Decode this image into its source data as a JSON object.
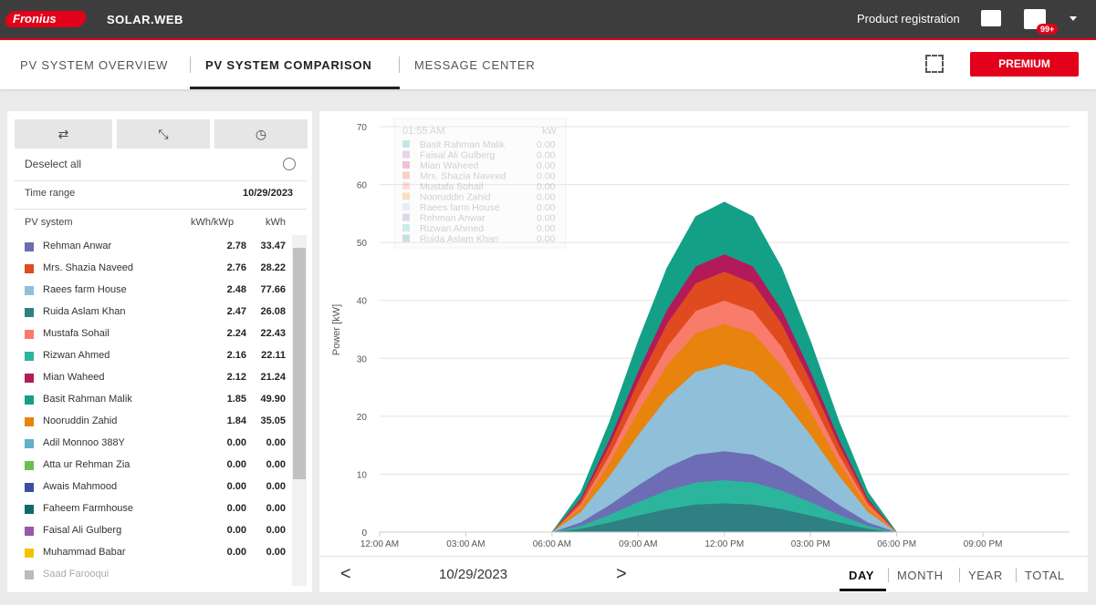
{
  "header": {
    "logo": "Fronius",
    "app": "SOLAR.WEB",
    "registration": "Product registration",
    "badge": "99+"
  },
  "nav": {
    "tabs": [
      "PV SYSTEM OVERVIEW",
      "PV SYSTEM COMPARISON",
      "MESSAGE CENTER"
    ],
    "premium": "PREMIUM"
  },
  "sidebar": {
    "deselect": "Deselect all",
    "time_range_label": "Time range",
    "time_range_value": "10/29/2023",
    "columns": [
      "PV system",
      "kWh/kWp",
      "kWh"
    ],
    "rows": [
      {
        "name": "Rehman Anwar",
        "color": "#6d6db5",
        "kwh_kwp": "2.78",
        "kwh": "33.47"
      },
      {
        "name": "Mrs. Shazia Naveed",
        "color": "#e04a1f",
        "kwh_kwp": "2.76",
        "kwh": "28.22"
      },
      {
        "name": "Raees farm House",
        "color": "#8fbfd9",
        "kwh_kwp": "2.48",
        "kwh": "77.66"
      },
      {
        "name": "Ruida Aslam Khan",
        "color": "#2e8083",
        "kwh_kwp": "2.47",
        "kwh": "26.08"
      },
      {
        "name": "Mustafa Sohail",
        "color": "#f87b6b",
        "kwh_kwp": "2.24",
        "kwh": "22.43"
      },
      {
        "name": "Rizwan Ahmed",
        "color": "#2bb59d",
        "kwh_kwp": "2.16",
        "kwh": "22.11"
      },
      {
        "name": "Mian Waheed",
        "color": "#b21a5a",
        "kwh_kwp": "2.12",
        "kwh": "21.24"
      },
      {
        "name": "Basit Rahman Malik",
        "color": "#13a086",
        "kwh_kwp": "1.85",
        "kwh": "49.90"
      },
      {
        "name": "Nooruddin Zahid",
        "color": "#e8830e",
        "kwh_kwp": "1.84",
        "kwh": "35.05"
      },
      {
        "name": "Adil Monnoo 388Y",
        "color": "#62afc9",
        "kwh_kwp": "0.00",
        "kwh": "0.00"
      },
      {
        "name": "Atta ur Rehman Zia",
        "color": "#6bbf4f",
        "kwh_kwp": "0.00",
        "kwh": "0.00"
      },
      {
        "name": "Awais Mahmood",
        "color": "#3a4fa0",
        "kwh_kwp": "0.00",
        "kwh": "0.00"
      },
      {
        "name": "Faheem Farmhouse",
        "color": "#0d6b6b",
        "kwh_kwp": "0.00",
        "kwh": "0.00"
      },
      {
        "name": "Faisal Ali Gulberg",
        "color": "#9b57b0",
        "kwh_kwp": "0.00",
        "kwh": "0.00"
      },
      {
        "name": "Muhammad Babar",
        "color": "#f5c400",
        "kwh_kwp": "0.00",
        "kwh": "0.00"
      },
      {
        "name": "Saad Farooqui",
        "color": "#bbbbbb"
      }
    ]
  },
  "chart_data": {
    "type": "stacked_area",
    "y_label": "Power [kW]",
    "x": [
      0,
      6,
      7,
      8,
      9,
      10,
      11,
      12,
      13,
      14,
      15,
      16,
      17,
      18,
      24
    ],
    "xlim": [
      0,
      24
    ],
    "xticks": [
      {
        "value": 0,
        "label": "12:00 AM"
      },
      {
        "value": 3,
        "label": "03:00 AM"
      },
      {
        "value": 6,
        "label": "06:00 AM"
      },
      {
        "value": 9,
        "label": "09:00 AM"
      },
      {
        "value": 12,
        "label": "12:00 PM"
      },
      {
        "value": 15,
        "label": "03:00 PM"
      },
      {
        "value": 18,
        "label": "06:00 PM"
      },
      {
        "value": 21,
        "label": "09:00 PM"
      }
    ],
    "ylim": [
      0,
      70
    ],
    "yticks": [
      0,
      10,
      20,
      30,
      40,
      50,
      60,
      70
    ],
    "grid": true,
    "series": [
      {
        "name": "Ruida Aslam Khan",
        "color": "#2e8083",
        "values": [
          0,
          0,
          0.6,
          1.7,
          2.9,
          4,
          4.8,
          5,
          4.8,
          4,
          2.9,
          1.7,
          0.6,
          0,
          0
        ]
      },
      {
        "name": "Rizwan Ahmed",
        "color": "#2bb59d",
        "values": [
          0,
          0,
          0.5,
          1.3,
          2.3,
          3.2,
          3.8,
          4,
          3.8,
          3.2,
          2.3,
          1.3,
          0.5,
          0,
          0
        ]
      },
      {
        "name": "Rehman Anwar",
        "color": "#6d6db5",
        "values": [
          0,
          0,
          0.6,
          1.7,
          2.9,
          4,
          4.8,
          5,
          4.8,
          4,
          2.9,
          1.7,
          0.6,
          0,
          0
        ]
      },
      {
        "name": "Raees farm House",
        "color": "#8fbfd9",
        "values": [
          0,
          0,
          1.8,
          5,
          8.7,
          12,
          14.3,
          15,
          14.3,
          12,
          8.7,
          5,
          1.8,
          0,
          0
        ]
      },
      {
        "name": "Nooruddin Zahid",
        "color": "#e8830e",
        "values": [
          0,
          0,
          0.8,
          2.3,
          4.1,
          5.6,
          6.7,
          7,
          6.7,
          5.6,
          4.1,
          2.3,
          0.8,
          0,
          0
        ]
      },
      {
        "name": "Mustafa Sohail",
        "color": "#f87b6b",
        "values": [
          0,
          0,
          0.5,
          1.3,
          2.3,
          3.2,
          3.8,
          4,
          3.8,
          3.2,
          2.3,
          1.3,
          0.5,
          0,
          0
        ]
      },
      {
        "name": "Mrs. Shazia Naveed",
        "color": "#e04a1f",
        "values": [
          0,
          0,
          0.6,
          1.7,
          2.9,
          4,
          4.8,
          5,
          4.8,
          4,
          2.9,
          1.7,
          0.6,
          0,
          0
        ]
      },
      {
        "name": "Mian Waheed",
        "color": "#b21a5a",
        "values": [
          0,
          0,
          0.4,
          1,
          1.7,
          2.4,
          2.9,
          3,
          2.9,
          2.4,
          1.7,
          1,
          0.4,
          0,
          0
        ]
      },
      {
        "name": "Basit Rahman Malik",
        "color": "#13a086",
        "values": [
          0,
          0,
          1.1,
          3,
          5.2,
          7.2,
          8.6,
          9,
          8.6,
          7.2,
          5.2,
          3,
          1.1,
          0,
          0
        ]
      }
    ],
    "tooltip": {
      "time": "01:55 AM",
      "unit": "kW",
      "rows": [
        {
          "name": "Basit Rahman Malik",
          "color": "#13a086",
          "value": "0.00"
        },
        {
          "name": "Faisal Ali Gulberg",
          "color": "#9b57b0",
          "value": "0.00"
        },
        {
          "name": "Mian Waheed",
          "color": "#b21a5a",
          "value": "0.00"
        },
        {
          "name": "Mrs. Shazia Naveed",
          "color": "#e04a1f",
          "value": "0.00"
        },
        {
          "name": "Mustafa Sohail",
          "color": "#f87b6b",
          "value": "0.00"
        },
        {
          "name": "Nooruddin Zahid",
          "color": "#e8830e",
          "value": "0.00"
        },
        {
          "name": "Raees farm House",
          "color": "#8fbfd9",
          "value": "0.00"
        },
        {
          "name": "Rehman Anwar",
          "color": "#6d6db5",
          "value": "0.00"
        },
        {
          "name": "Rizwan Ahmed",
          "color": "#2bb59d",
          "value": "0.00"
        },
        {
          "name": "Ruida Aslam Khan",
          "color": "#2e8083",
          "value": "0.00"
        }
      ]
    }
  },
  "footer": {
    "prev": "<",
    "date": "10/29/2023",
    "next": ">",
    "periods": [
      "DAY",
      "MONTH",
      "YEAR",
      "TOTAL"
    ]
  }
}
